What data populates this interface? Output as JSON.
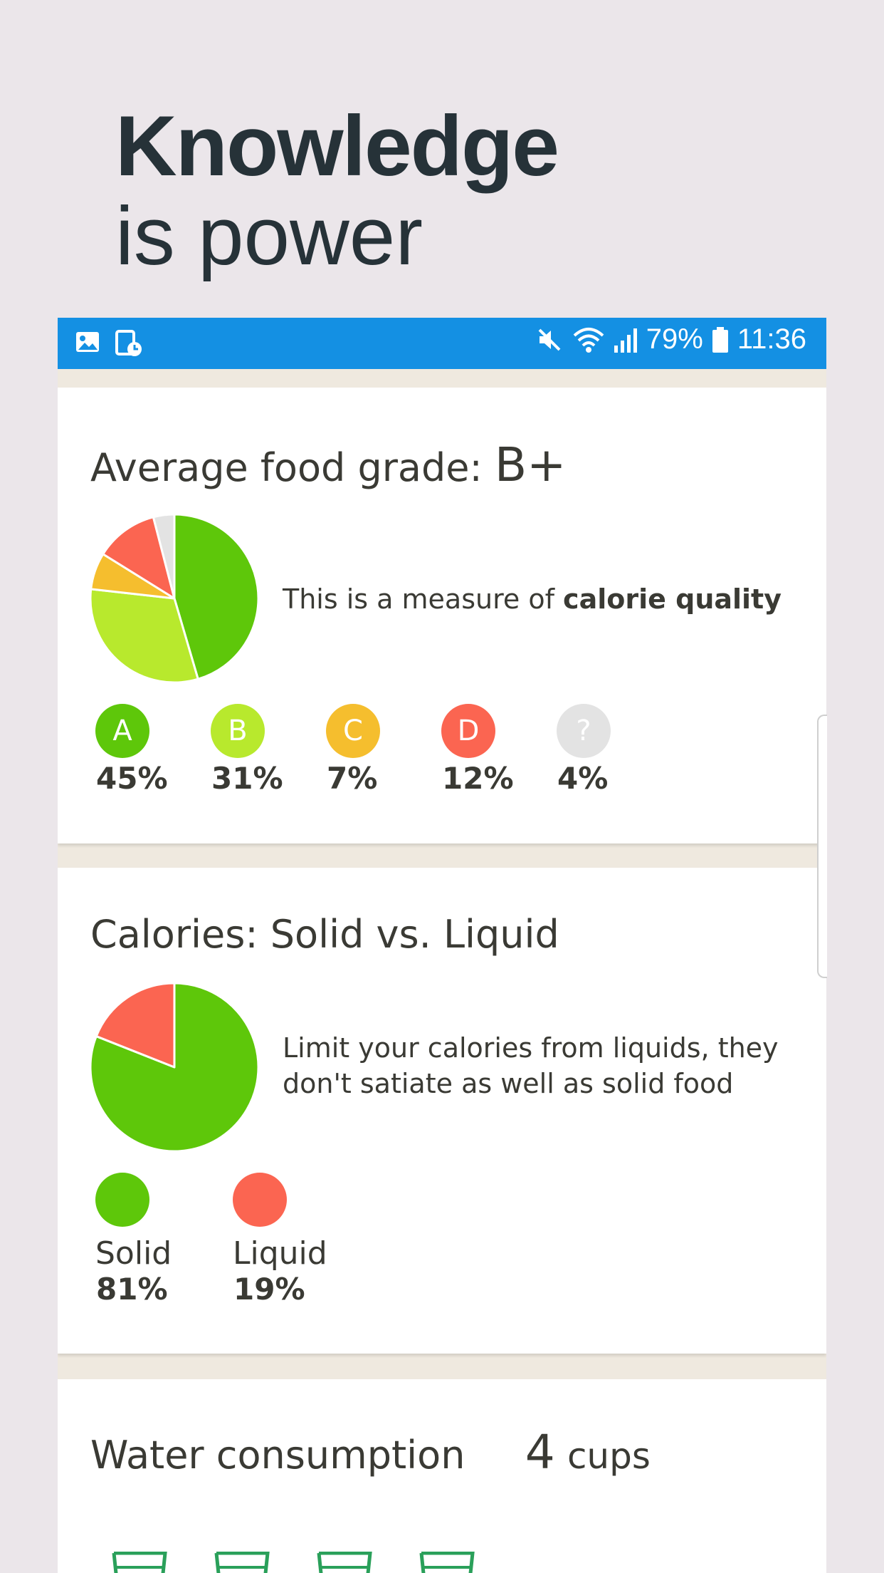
{
  "hero": {
    "line1": "Knowledge",
    "line2": "is power"
  },
  "status_bar": {
    "left_icons": [
      "image-icon",
      "screen-timer-icon"
    ],
    "right_icons": [
      "mute-icon",
      "wifi-icon",
      "signal-icon",
      "battery-icon"
    ],
    "battery": "79%",
    "time": "11:36"
  },
  "food_grade": {
    "title": "Average food grade:",
    "grade": "B+",
    "description_prefix": "This is a measure of ",
    "description_bold": "calorie quality",
    "chart_data": {
      "type": "pie",
      "categories": [
        "A",
        "B",
        "C",
        "D",
        "?"
      ],
      "values": [
        45,
        31,
        7,
        12,
        4
      ],
      "colors": [
        "#5ec70a",
        "#b8e92d",
        "#f5be2e",
        "#fb6551",
        "#e3e3e3"
      ]
    },
    "legend": [
      {
        "label": "A",
        "pct": "45%",
        "color": "#5ec70a"
      },
      {
        "label": "B",
        "pct": "31%",
        "color": "#b8e92d"
      },
      {
        "label": "C",
        "pct": "7%",
        "color": "#f5be2e"
      },
      {
        "label": "D",
        "pct": "12%",
        "color": "#fb6551"
      },
      {
        "label": "?",
        "pct": "4%",
        "color": "#e3e3e3"
      }
    ]
  },
  "solid_liquid": {
    "title": "Calories: Solid vs. Liquid",
    "description_line1": "Limit your calories from liquids, they",
    "description_line2": "don't satiate as well as solid food",
    "chart_data": {
      "type": "pie",
      "categories": [
        "Solid",
        "Liquid"
      ],
      "values": [
        81,
        19
      ],
      "colors": [
        "#5ec70a",
        "#fb6551"
      ]
    },
    "legend": [
      {
        "label": "Solid",
        "pct": "81%",
        "color": "#5ec70a"
      },
      {
        "label": "Liquid",
        "pct": "19%",
        "color": "#fb6551"
      }
    ]
  },
  "water": {
    "title": "Water consumption",
    "count": "4",
    "unit": "cups",
    "cup_color": "#2aa05a"
  }
}
